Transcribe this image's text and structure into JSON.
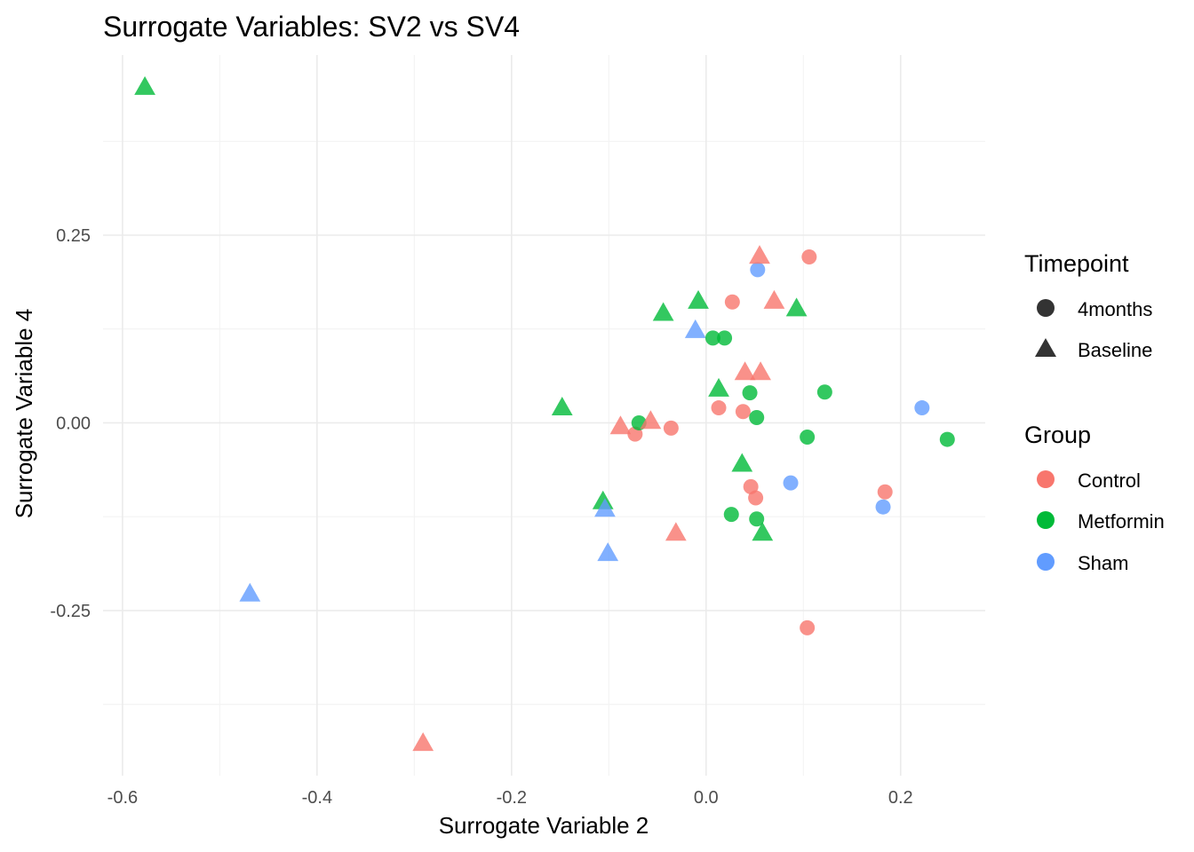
{
  "chart_data": {
    "type": "scatter",
    "title": "Surrogate Variables: SV2 vs SV4",
    "xlabel": "Surrogate Variable 2",
    "ylabel": "Surrogate Variable 4",
    "xlim": [
      -0.62,
      0.287
    ],
    "ylim": [
      -0.47,
      0.49
    ],
    "x_ticks": [
      -0.6,
      -0.4,
      -0.2,
      0.0,
      0.2
    ],
    "x_tick_labels": [
      "-0.6",
      "-0.4",
      "-0.2",
      "0.0",
      "0.2"
    ],
    "y_ticks": [
      -0.25,
      0.0,
      0.25
    ],
    "y_tick_labels": [
      "-0.25",
      "0.00",
      "0.25"
    ],
    "grid": true,
    "legend_position": "right",
    "legends": {
      "shape": {
        "title": "Timepoint",
        "entries": [
          {
            "label": "4months",
            "shape": "circle"
          },
          {
            "label": "Baseline",
            "shape": "triangle"
          }
        ]
      },
      "color": {
        "title": "Group",
        "entries": [
          {
            "label": "Control",
            "color": "#F8766D"
          },
          {
            "label": "Metformin",
            "color": "#00BA38"
          },
          {
            "label": "Sham",
            "color": "#619CFF"
          }
        ]
      }
    },
    "points": [
      {
        "x": -0.577,
        "y": 0.447,
        "group": "Metformin",
        "timepoint": "Baseline"
      },
      {
        "x": -0.469,
        "y": -0.228,
        "group": "Sham",
        "timepoint": "Baseline"
      },
      {
        "x": -0.291,
        "y": -0.427,
        "group": "Control",
        "timepoint": "Baseline"
      },
      {
        "x": -0.148,
        "y": 0.02,
        "group": "Metformin",
        "timepoint": "Baseline"
      },
      {
        "x": -0.106,
        "y": -0.105,
        "group": "Metformin",
        "timepoint": "Baseline"
      },
      {
        "x": -0.104,
        "y": -0.115,
        "group": "Sham",
        "timepoint": "Baseline"
      },
      {
        "x": -0.101,
        "y": -0.174,
        "group": "Sham",
        "timepoint": "Baseline"
      },
      {
        "x": -0.088,
        "y": -0.005,
        "group": "Control",
        "timepoint": "Baseline"
      },
      {
        "x": -0.073,
        "y": -0.015,
        "group": "Control",
        "timepoint": "4months"
      },
      {
        "x": -0.069,
        "y": 0.0,
        "group": "Metformin",
        "timepoint": "4months"
      },
      {
        "x": -0.057,
        "y": 0.002,
        "group": "Control",
        "timepoint": "Baseline"
      },
      {
        "x": -0.044,
        "y": 0.146,
        "group": "Metformin",
        "timepoint": "Baseline"
      },
      {
        "x": -0.036,
        "y": -0.007,
        "group": "Control",
        "timepoint": "4months"
      },
      {
        "x": -0.031,
        "y": -0.147,
        "group": "Control",
        "timepoint": "Baseline"
      },
      {
        "x": -0.011,
        "y": 0.123,
        "group": "Sham",
        "timepoint": "Baseline"
      },
      {
        "x": -0.008,
        "y": 0.162,
        "group": "Metformin",
        "timepoint": "Baseline"
      },
      {
        "x": 0.007,
        "y": 0.113,
        "group": "Metformin",
        "timepoint": "4months"
      },
      {
        "x": 0.013,
        "y": 0.045,
        "group": "Metformin",
        "timepoint": "Baseline"
      },
      {
        "x": 0.013,
        "y": 0.02,
        "group": "Control",
        "timepoint": "4months"
      },
      {
        "x": 0.019,
        "y": 0.113,
        "group": "Metformin",
        "timepoint": "4months"
      },
      {
        "x": 0.027,
        "y": 0.161,
        "group": "Control",
        "timepoint": "4months"
      },
      {
        "x": 0.026,
        "y": -0.122,
        "group": "Metformin",
        "timepoint": "4months"
      },
      {
        "x": 0.037,
        "y": -0.055,
        "group": "Metformin",
        "timepoint": "Baseline"
      },
      {
        "x": 0.038,
        "y": 0.015,
        "group": "Control",
        "timepoint": "4months"
      },
      {
        "x": 0.04,
        "y": 0.067,
        "group": "Control",
        "timepoint": "Baseline"
      },
      {
        "x": 0.045,
        "y": 0.04,
        "group": "Metformin",
        "timepoint": "4months"
      },
      {
        "x": 0.046,
        "y": -0.085,
        "group": "Control",
        "timepoint": "4months"
      },
      {
        "x": 0.051,
        "y": -0.1,
        "group": "Control",
        "timepoint": "4months"
      },
      {
        "x": 0.052,
        "y": 0.007,
        "group": "Metformin",
        "timepoint": "4months"
      },
      {
        "x": 0.052,
        "y": -0.128,
        "group": "Metformin",
        "timepoint": "4months"
      },
      {
        "x": 0.053,
        "y": 0.204,
        "group": "Sham",
        "timepoint": "4months"
      },
      {
        "x": 0.055,
        "y": 0.222,
        "group": "Control",
        "timepoint": "Baseline"
      },
      {
        "x": 0.056,
        "y": 0.067,
        "group": "Control",
        "timepoint": "Baseline"
      },
      {
        "x": 0.058,
        "y": -0.147,
        "group": "Metformin",
        "timepoint": "Baseline"
      },
      {
        "x": 0.07,
        "y": 0.162,
        "group": "Control",
        "timepoint": "Baseline"
      },
      {
        "x": 0.087,
        "y": -0.08,
        "group": "Sham",
        "timepoint": "4months"
      },
      {
        "x": 0.093,
        "y": 0.152,
        "group": "Metformin",
        "timepoint": "Baseline"
      },
      {
        "x": 0.104,
        "y": -0.019,
        "group": "Metformin",
        "timepoint": "4months"
      },
      {
        "x": 0.104,
        "y": -0.273,
        "group": "Control",
        "timepoint": "4months"
      },
      {
        "x": 0.106,
        "y": 0.221,
        "group": "Control",
        "timepoint": "4months"
      },
      {
        "x": 0.122,
        "y": 0.041,
        "group": "Metformin",
        "timepoint": "4months"
      },
      {
        "x": 0.182,
        "y": -0.112,
        "group": "Sham",
        "timepoint": "4months"
      },
      {
        "x": 0.184,
        "y": -0.092,
        "group": "Control",
        "timepoint": "4months"
      },
      {
        "x": 0.222,
        "y": 0.02,
        "group": "Sham",
        "timepoint": "4months"
      },
      {
        "x": 0.248,
        "y": -0.022,
        "group": "Metformin",
        "timepoint": "4months"
      }
    ]
  }
}
